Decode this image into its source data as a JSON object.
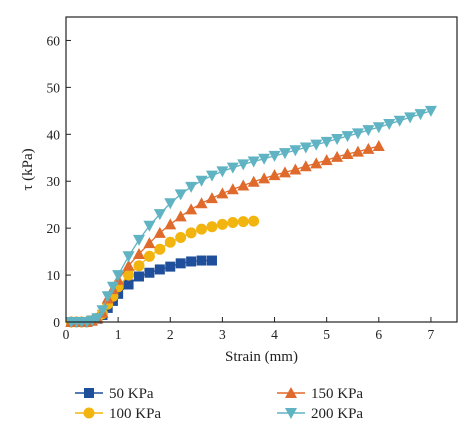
{
  "chart_data": {
    "type": "line",
    "xlabel": "Strain (mm)",
    "ylabel": "τ (kPa)",
    "xlim": [
      0,
      7.5
    ],
    "ylim": [
      0,
      65
    ],
    "x_ticks": [
      "0",
      "1",
      "2",
      "3",
      "4",
      "5",
      "6",
      "7"
    ],
    "y_ticks": [
      "0",
      "10",
      "20",
      "30",
      "40",
      "50",
      "60"
    ],
    "grid": false,
    "legend_position": "bottom",
    "series": [
      {
        "name": "50 KPa",
        "color": "#1f4e9a",
        "marker": "square",
        "x": [
          0.1,
          0.2,
          0.3,
          0.4,
          0.5,
          0.6,
          0.7,
          0.8,
          0.9,
          1.0,
          1.2,
          1.4,
          1.6,
          1.8,
          2.0,
          2.2,
          2.4,
          2.6,
          2.8
        ],
        "y": [
          0,
          0,
          0,
          0,
          0.3,
          0.7,
          1.5,
          3.0,
          4.5,
          6.0,
          8.0,
          9.7,
          10.5,
          11.2,
          11.8,
          12.5,
          12.9,
          13.1,
          13.1
        ]
      },
      {
        "name": "100 KPa",
        "color": "#f2b50f",
        "marker": "circle",
        "x": [
          0.1,
          0.2,
          0.3,
          0.4,
          0.5,
          0.6,
          0.7,
          0.8,
          0.9,
          1.0,
          1.2,
          1.4,
          1.6,
          1.8,
          2.0,
          2.2,
          2.4,
          2.6,
          2.8,
          3.0,
          3.2,
          3.4,
          3.6
        ],
        "y": [
          0,
          0,
          0,
          0,
          0.3,
          0.8,
          1.8,
          3.8,
          5.5,
          7.5,
          10.0,
          12.0,
          14.0,
          15.5,
          17.0,
          18.0,
          19.0,
          19.8,
          20.3,
          20.8,
          21.2,
          21.4,
          21.5
        ]
      },
      {
        "name": "150 KPa",
        "color": "#e06a2c",
        "marker": "triangle-up",
        "x": [
          0.1,
          0.2,
          0.3,
          0.4,
          0.5,
          0.6,
          0.7,
          0.8,
          0.9,
          1.0,
          1.2,
          1.4,
          1.6,
          1.8,
          2.0,
          2.2,
          2.4,
          2.6,
          2.8,
          3.0,
          3.2,
          3.4,
          3.6,
          3.8,
          4.0,
          4.2,
          4.4,
          4.6,
          4.8,
          5.0,
          5.2,
          5.4,
          5.6,
          5.8,
          6.0
        ],
        "y": [
          0,
          0,
          0,
          0,
          0.3,
          0.8,
          2.0,
          5.0,
          7.0,
          9.0,
          12.0,
          14.5,
          16.8,
          19.0,
          20.8,
          22.5,
          24.0,
          25.3,
          26.4,
          27.4,
          28.3,
          29.1,
          29.9,
          30.6,
          31.3,
          31.9,
          32.5,
          33.2,
          33.8,
          34.5,
          35.2,
          35.8,
          36.3,
          36.9,
          37.5
        ]
      },
      {
        "name": "200 KPa",
        "color": "#5fb3c3",
        "marker": "triangle-down",
        "x": [
          0.1,
          0.2,
          0.3,
          0.4,
          0.5,
          0.6,
          0.7,
          0.8,
          0.9,
          1.0,
          1.2,
          1.4,
          1.6,
          1.8,
          2.0,
          2.2,
          2.4,
          2.6,
          2.8,
          3.0,
          3.2,
          3.4,
          3.6,
          3.8,
          4.0,
          4.2,
          4.4,
          4.6,
          4.8,
          5.0,
          5.2,
          5.4,
          5.6,
          5.8,
          6.0,
          6.2,
          6.4,
          6.6,
          6.8,
          7.0
        ],
        "y": [
          0,
          0,
          0,
          0,
          0.3,
          0.8,
          2.5,
          5.5,
          7.5,
          10.0,
          14.0,
          17.5,
          20.5,
          23.0,
          25.3,
          27.2,
          28.8,
          30.1,
          31.2,
          32.1,
          32.9,
          33.6,
          34.2,
          34.8,
          35.4,
          36.0,
          36.6,
          37.2,
          37.8,
          38.4,
          39.0,
          39.6,
          40.2,
          40.9,
          41.5,
          42.2,
          42.9,
          43.6,
          44.3,
          45.0
        ]
      }
    ]
  }
}
